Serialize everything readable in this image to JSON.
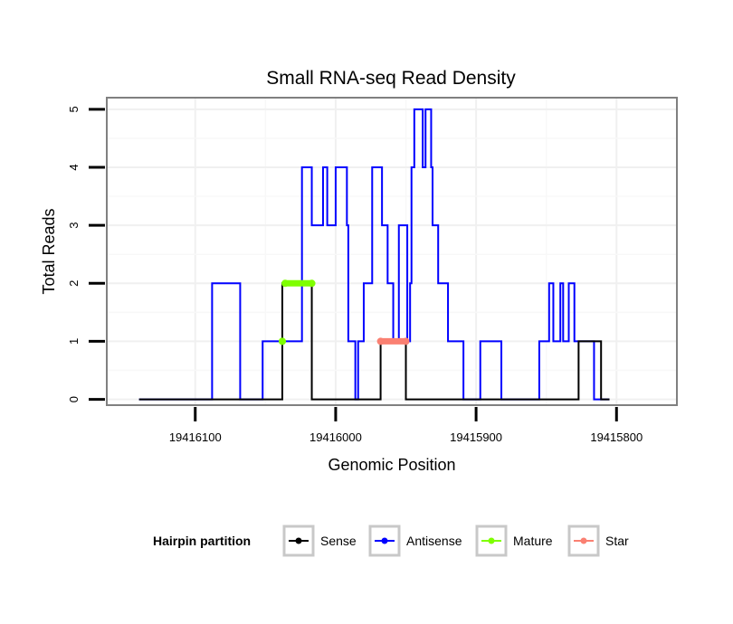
{
  "chart_data": {
    "type": "line",
    "title": "Small RNA-seq Read Density",
    "xlabel": "Genomic Position",
    "ylabel": "Total Reads",
    "xlim": [
      19416163,
      19415757
    ],
    "ylim": [
      -0.1,
      5.2
    ],
    "x_reversed": true,
    "grid": true,
    "x_ticks": [
      19416100,
      19416000,
      19415900,
      19415800
    ],
    "x_tick_labels": [
      "19416100",
      "19416000",
      "19415900",
      "19415800"
    ],
    "y_ticks": [
      0,
      1,
      2,
      3,
      4,
      5
    ],
    "y_tick_labels": [
      "0",
      "1",
      "2",
      "3",
      "4",
      "5"
    ],
    "legend": {
      "title": "Hairpin partition",
      "position": "bottom",
      "entries": [
        {
          "label": "Sense",
          "color": "#000000"
        },
        {
          "label": "Antisense",
          "color": "#0000ff"
        },
        {
          "label": "Mature",
          "color": "#7fff00"
        },
        {
          "label": "Star",
          "color": "#fa8072"
        }
      ]
    },
    "series": [
      {
        "name": "Antisense",
        "kind": "step",
        "color": "#0000ff",
        "x": [
          19416140,
          19416088,
          19416068,
          19416052,
          19416024,
          19416017,
          19416009,
          19416006,
          19416000,
          19415992,
          19415991,
          19415986,
          19415984,
          19415980,
          19415974,
          19415967,
          19415963,
          19415959,
          19415955,
          19415949,
          19415947,
          19415946,
          19415944,
          19415938,
          19415936,
          19415932,
          19415931,
          19415927,
          19415920,
          19415909,
          19415897,
          19415882,
          19415855,
          19415848,
          19415845,
          19415840,
          19415838,
          19415834,
          19415830,
          19415816,
          19415805
        ],
        "y": [
          0,
          2,
          0,
          1,
          4,
          3,
          4,
          3,
          4,
          3,
          1,
          0,
          1,
          2,
          4,
          3,
          2,
          1,
          3,
          1,
          2,
          4,
          5,
          4,
          5,
          4,
          3,
          2,
          1,
          0,
          1,
          0,
          1,
          2,
          1,
          2,
          1,
          2,
          1,
          0,
          0
        ]
      },
      {
        "name": "Sense",
        "kind": "step",
        "color": "#000000",
        "x": [
          19416140,
          19416038,
          19416017,
          19415968,
          19415950,
          19415827,
          19415811,
          19415805
        ],
        "y": [
          0,
          2,
          0,
          1,
          0,
          1,
          0,
          0
        ]
      },
      {
        "name": "Mature",
        "kind": "segments",
        "color": "#7fff00",
        "segments": [
          {
            "x": [
              19416038,
              19416038
            ],
            "y": 1
          },
          {
            "x": [
              19416036,
              19416017
            ],
            "y": 2
          }
        ]
      },
      {
        "name": "Star",
        "kind": "segments",
        "color": "#fa8072",
        "segments": [
          {
            "x": [
              19415968,
              19415950
            ],
            "y": 1
          }
        ]
      }
    ]
  }
}
